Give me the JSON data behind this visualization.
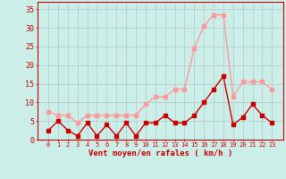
{
  "hours": [
    0,
    1,
    2,
    3,
    4,
    5,
    6,
    7,
    8,
    9,
    10,
    11,
    12,
    13,
    14,
    15,
    16,
    17,
    18,
    19,
    20,
    21,
    22,
    23
  ],
  "wind_avg": [
    2.5,
    5,
    2.5,
    1,
    4.5,
    1,
    4,
    1,
    4.5,
    1,
    4.5,
    4.5,
    6.5,
    4.5,
    4.5,
    6.5,
    10,
    13.5,
    17,
    4,
    6,
    9.5,
    6.5,
    4.5
  ],
  "wind_gust": [
    7.5,
    6.5,
    6.5,
    4.5,
    6.5,
    6.5,
    6.5,
    6.5,
    6.5,
    6.5,
    9.5,
    11.5,
    11.5,
    13.5,
    13.5,
    24.5,
    30.5,
    33.5,
    33.5,
    11.5,
    15.5,
    15.5,
    15.5,
    13.5
  ],
  "avg_color": "#cc0000",
  "gust_color": "#ff9999",
  "bg_color": "#cceee8",
  "grid_color": "#b0c8c8",
  "xlabel": "Vent moyen/en rafales ( km/h )",
  "ylim": [
    0,
    37
  ],
  "yticks": [
    0,
    5,
    10,
    15,
    20,
    25,
    30,
    35
  ],
  "marker_size": 2.5,
  "line_width": 1.0
}
